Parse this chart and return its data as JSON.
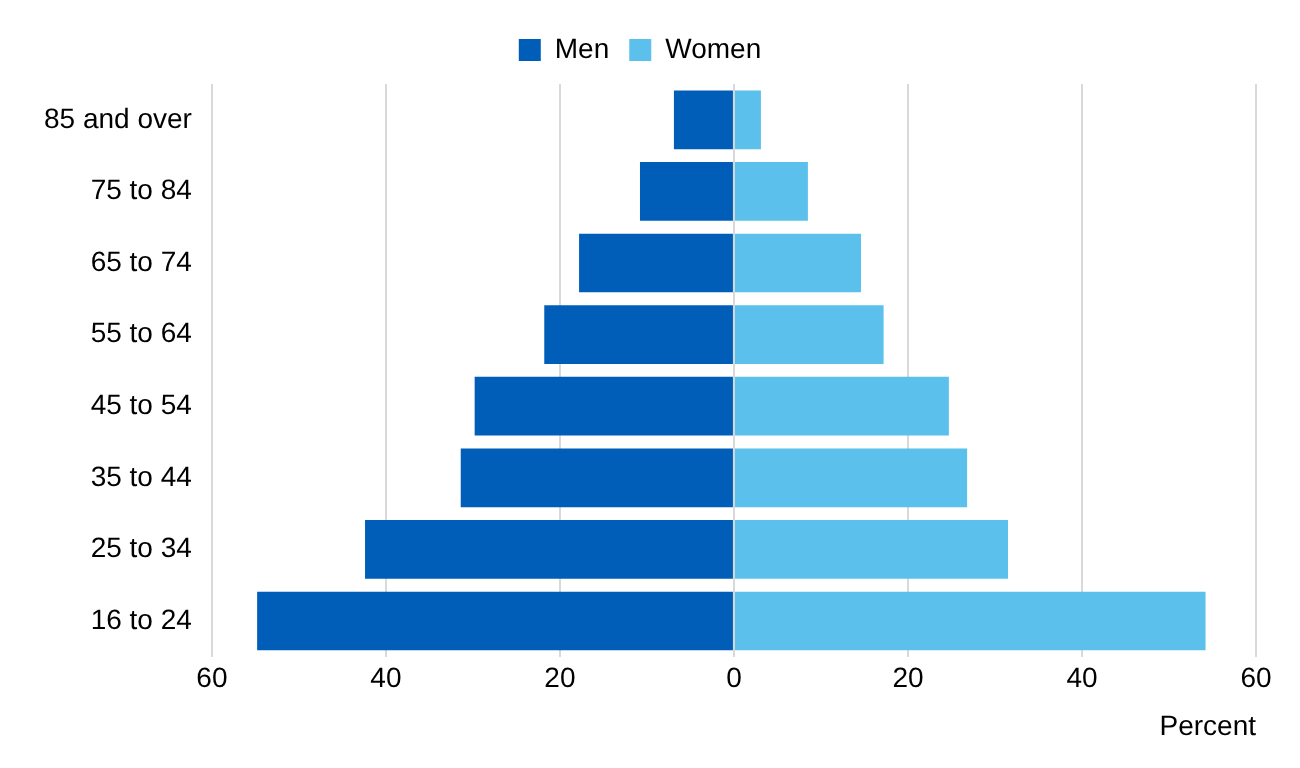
{
  "chart_data": {
    "type": "bar",
    "orientation": "horizontal",
    "stacked": true,
    "categories": [
      "85 and over",
      "75 to 84",
      "65 to 74",
      "55 to 64",
      "45 to 54",
      "35 to 44",
      "25 to 34",
      "16 to 24"
    ],
    "series": [
      {
        "name": "Men",
        "color": "#005eb8",
        "values": [
          -6.9,
          -10.8,
          -17.8,
          -21.8,
          -29.8,
          -31.4,
          -42.4,
          -54.8
        ]
      },
      {
        "name": "Women",
        "color": "#5bc0eb",
        "values": [
          3.1,
          8.5,
          14.6,
          17.2,
          24.7,
          26.8,
          31.5,
          54.2
        ]
      }
    ],
    "xlabel": "Percent",
    "xlim": [
      -60,
      60
    ],
    "xticks": [
      {
        "value": -60,
        "label": "60"
      },
      {
        "value": -40,
        "label": "40"
      },
      {
        "value": -20,
        "label": "20"
      },
      0,
      20,
      40,
      60
    ],
    "grid": "x",
    "legend": "top"
  }
}
